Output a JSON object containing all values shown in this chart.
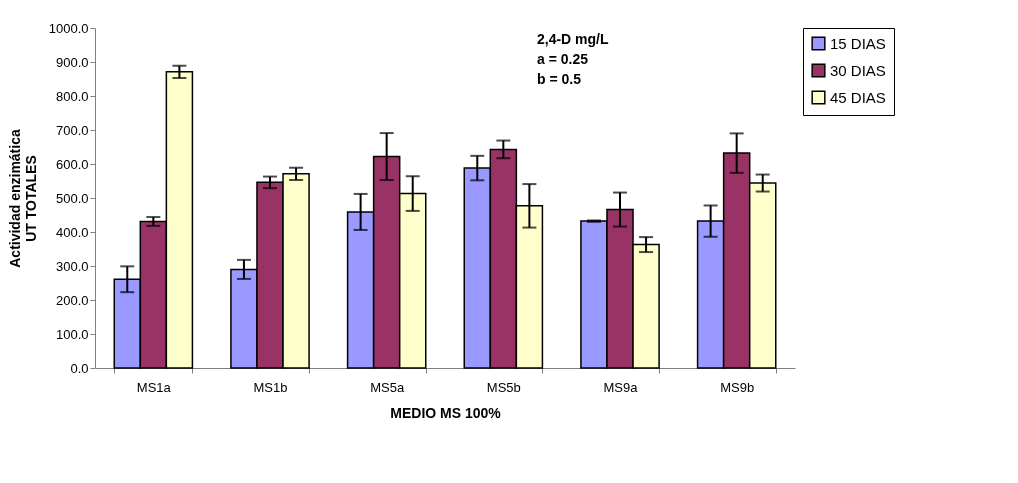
{
  "chart_data": {
    "type": "bar",
    "xlabel": "MEDIO MS 100%",
    "ylabel": "Actividad enzimática\nUT TOTALES",
    "categories": [
      "MS1a",
      "MS1b",
      "MS5a",
      "MS5b",
      "MS9a",
      "MS9b"
    ],
    "series": [
      {
        "name": "15 DIAS",
        "color": "#9999ff",
        "values": [
          261,
          290,
          459,
          588,
          432,
          432
        ],
        "errors": [
          38,
          28,
          53,
          36,
          2,
          46
        ]
      },
      {
        "name": "30 DIAS",
        "color": "#993366",
        "values": [
          431,
          546,
          622,
          643,
          466,
          632
        ],
        "errors": [
          13,
          17,
          69,
          26,
          50,
          58
        ]
      },
      {
        "name": "45 DIAS",
        "color": "#ffffcc",
        "values": [
          871,
          571,
          513,
          477,
          363,
          544
        ],
        "errors": [
          18,
          18,
          51,
          64,
          22,
          25
        ]
      }
    ],
    "ylim": [
      0,
      1000
    ],
    "yticks": [
      {
        "value": 0,
        "label": "0.0"
      },
      {
        "value": 100,
        "label": "100.0"
      },
      {
        "value": 200,
        "label": "200.0"
      },
      {
        "value": 300,
        "label": "300.0"
      },
      {
        "value": 400,
        "label": "400.0"
      },
      {
        "value": 500,
        "label": "500.0"
      },
      {
        "value": 600,
        "label": "600.0"
      },
      {
        "value": 700,
        "label": "700.0"
      },
      {
        "value": 800,
        "label": "800.0"
      },
      {
        "value": 900,
        "label": "900.0"
      },
      {
        "value": 1000,
        "label": "1000.0"
      }
    ],
    "annotations": [
      "2,4-D mg/L",
      "a = 0.25",
      "b = 0.5"
    ],
    "legend": "top right",
    "grid": false
  }
}
